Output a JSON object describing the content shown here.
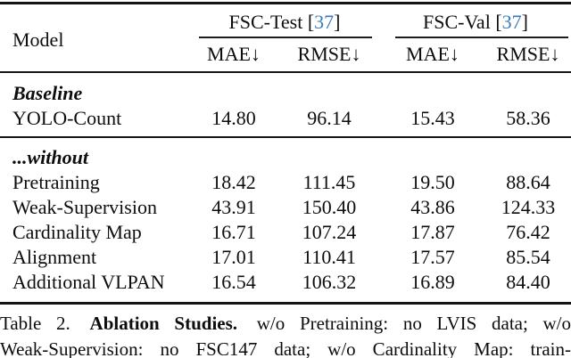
{
  "colors": {
    "background": "#ffffff",
    "text": "#0d0d0d",
    "rule": "#141414",
    "citation_blue": "#3a7abd"
  },
  "table": {
    "model_header": "Model",
    "groups": [
      {
        "name": "FSC-Test",
        "bracket_open": "[",
        "cite": "37",
        "bracket_close": "]"
      },
      {
        "name": "FSC-Val",
        "bracket_open": "[",
        "cite": "37",
        "bracket_close": "]"
      }
    ],
    "sub_headers": [
      "MAE↓",
      "RMSE↓",
      "MAE↓",
      "RMSE↓"
    ],
    "sections": {
      "baseline": "Baseline",
      "without": "...without"
    },
    "rows": [
      {
        "label": "YOLO-Count",
        "values": [
          "14.80",
          "96.14",
          "15.43",
          "58.36"
        ]
      },
      {
        "label": "Pretraining",
        "values": [
          "18.42",
          "111.45",
          "19.50",
          "88.64"
        ]
      },
      {
        "label": "Weak-Supervision",
        "values": [
          "43.91",
          "150.40",
          "43.86",
          "124.33"
        ]
      },
      {
        "label": "Cardinality Map",
        "values": [
          "16.71",
          "107.24",
          "17.87",
          "76.42"
        ]
      },
      {
        "label": "Alignment",
        "values": [
          "17.01",
          "110.41",
          "17.57",
          "85.54"
        ]
      },
      {
        "label": "Additional VLPAN",
        "values": [
          "16.54",
          "106.32",
          "16.89",
          "84.40"
        ]
      }
    ]
  },
  "caption": {
    "prefix": "Table 2.",
    "bold": "Ablation Studies.",
    "line1_rest": "w/o Pretraining: no LVIS data; w/o",
    "line2": "Weak-Supervision: no FSC147 data; w/o Cardinality Map: train-"
  }
}
